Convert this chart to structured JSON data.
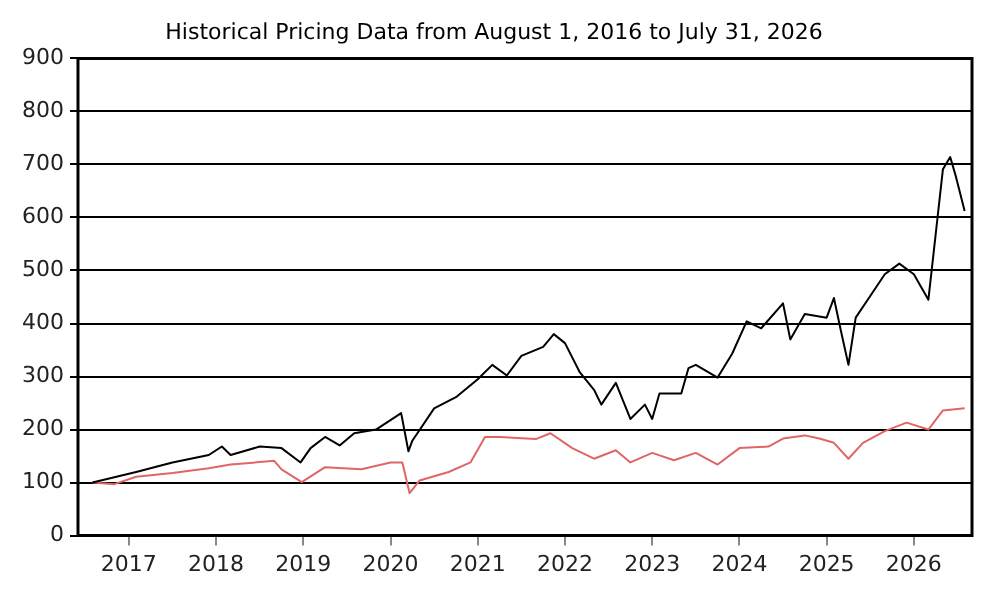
{
  "chart_data": {
    "type": "line",
    "title": "Historical Pricing Data from August 1, 2016 to July 31, 2026",
    "xlim": [
      "2016-06",
      "2026-09"
    ],
    "xticks": [
      "2017",
      "2018",
      "2019",
      "2020",
      "2021",
      "2022",
      "2023",
      "2024",
      "2025",
      "2026"
    ],
    "ylim": [
      0,
      900
    ],
    "yticks": [
      0,
      100,
      200,
      300,
      400,
      500,
      600,
      700,
      800,
      900
    ],
    "grid": "y",
    "legend": false,
    "marker": "none",
    "line_style": "solid",
    "series": [
      {
        "color": "#000000",
        "x": [
          "2016-08",
          "2017-02",
          "2017-07",
          "2017-12",
          "2018-01-25",
          "2018-03",
          "2018-07",
          "2018-10",
          "2018-12-20",
          "2019-02",
          "2019-04",
          "2019-06",
          "2019-08",
          "2019-11",
          "2020-02-15",
          "2020-03-15",
          "2020-04",
          "2020-07",
          "2020-10",
          "2021-01",
          "2021-03",
          "2021-05",
          "2021-07",
          "2021-10",
          "2021-11-15",
          "2022-01",
          "2022-03",
          "2022-05",
          "2022-06",
          "2022-08",
          "2022-10",
          "2022-12",
          "2023-01",
          "2023-02",
          "2023-05",
          "2023-06",
          "2023-07",
          "2023-10",
          "2023-12",
          "2024-02",
          "2024-04",
          "2024-07",
          "2024-08",
          "2024-10",
          "2025-01",
          "2025-02",
          "2025-03",
          "2025-04",
          "2025-05",
          "2025-07",
          "2025-09",
          "2025-11",
          "2026-01",
          "2026-03",
          "2026-04",
          "2026-05",
          "2026-06",
          "2026-06-25",
          "2026-07-31"
        ],
        "values": [
          100,
          120,
          138,
          152,
          168,
          152,
          168,
          165,
          138,
          165,
          186,
          170,
          193,
          200,
          231,
          159,
          179,
          240,
          261,
          295,
          322,
          302,
          339,
          356,
          380,
          363,
          309,
          275,
          247,
          288,
          220,
          247,
          220,
          268,
          268,
          316,
          322,
          298,
          343,
          404,
          391,
          438,
          370,
          418,
          411,
          448,
          384,
          322,
          411,
          452,
          493,
          513,
          493,
          445,
          568,
          691,
          714,
          677,
          612
        ]
      },
      {
        "color": "#e06666",
        "x": [
          "2016-08",
          "2016-11",
          "2017-02",
          "2017-07",
          "2017-12",
          "2018-03",
          "2018-09",
          "2018-10",
          "2018-12-25",
          "2019-04",
          "2019-09",
          "2020-01",
          "2020-02-20",
          "2020-03-20",
          "2020-05",
          "2020-09",
          "2020-12",
          "2021-02",
          "2021-04",
          "2021-09",
          "2021-11",
          "2022-02",
          "2022-05",
          "2022-08",
          "2022-10",
          "2023-01",
          "2023-04",
          "2023-07",
          "2023-10",
          "2024-01",
          "2024-05",
          "2024-07",
          "2024-10",
          "2024-12",
          "2025-02",
          "2025-04",
          "2025-06",
          "2025-09",
          "2025-12",
          "2026-03",
          "2026-05",
          "2026-07-31"
        ],
        "values": [
          100,
          97,
          111,
          118,
          127,
          134,
          141,
          125,
          101,
          129,
          125,
          138,
          138,
          80,
          104,
          120,
          138,
          186,
          186,
          182,
          193,
          165,
          145,
          161,
          138,
          156,
          142,
          156,
          134,
          165,
          168,
          183,
          189,
          183,
          175,
          145,
          175,
          197,
          213,
          200,
          236,
          240
        ]
      }
    ]
  }
}
